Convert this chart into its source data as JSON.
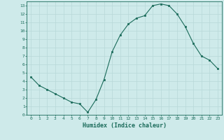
{
  "x": [
    0,
    1,
    2,
    3,
    4,
    5,
    6,
    7,
    8,
    9,
    10,
    11,
    12,
    13,
    14,
    15,
    16,
    17,
    18,
    19,
    20,
    21,
    22,
    23
  ],
  "y": [
    4.5,
    3.5,
    3.0,
    2.5,
    2.0,
    1.5,
    1.3,
    0.3,
    1.8,
    4.2,
    7.5,
    9.5,
    10.8,
    11.5,
    11.8,
    13.0,
    13.2,
    13.0,
    12.0,
    10.5,
    8.5,
    7.0,
    6.5,
    5.5
  ],
  "xlabel": "Humidex (Indice chaleur)",
  "xlim": [
    -0.5,
    23.5
  ],
  "ylim": [
    0,
    13.5
  ],
  "line_color": "#1a6b5a",
  "marker_color": "#1a6b5a",
  "bg_color": "#ceeaea",
  "grid_color": "#b8d8d8",
  "tick_color": "#1a6b5a",
  "label_color": "#1a6b5a",
  "xticks": [
    0,
    1,
    2,
    3,
    4,
    5,
    6,
    7,
    8,
    9,
    10,
    11,
    12,
    13,
    14,
    15,
    16,
    17,
    18,
    19,
    20,
    21,
    22,
    23
  ],
  "yticks": [
    0,
    1,
    2,
    3,
    4,
    5,
    6,
    7,
    8,
    9,
    10,
    11,
    12,
    13
  ]
}
